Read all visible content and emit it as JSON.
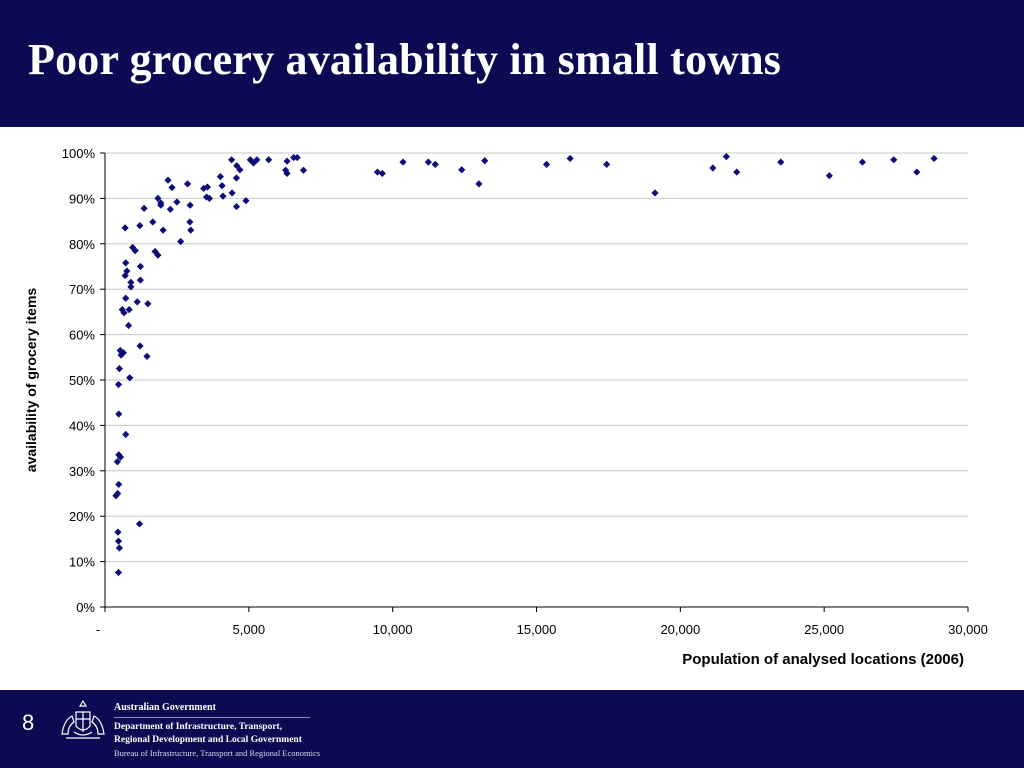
{
  "slide": {
    "title": "Poor grocery availability in small towns",
    "number": "8"
  },
  "footer": {
    "government": "Australian Government",
    "department_line1": "Department of Infrastructure, Transport,",
    "department_line2": "Regional Development and Local Government",
    "bureau": "Bureau of Infrastructure, Transport and Regional Economics"
  },
  "colors": {
    "header_bg": "#0c0a52",
    "marker": "#0d0d7a",
    "gridline": "#c8c8c8"
  },
  "chart_data": {
    "type": "scatter",
    "title": "",
    "xlabel": "Population of analysed locations (2006)",
    "ylabel": "availability of grocery items",
    "xlim": [
      0,
      30000
    ],
    "ylim": [
      0,
      1
    ],
    "x_ticks": [
      "-",
      "5,000",
      "10,000",
      "15,000",
      "20,000",
      "25,000",
      "30,000"
    ],
    "y_ticks": [
      "0%",
      "10%",
      "20%",
      "30%",
      "40%",
      "50%",
      "60%",
      "70%",
      "80%",
      "90%",
      "100%"
    ],
    "grid": "horizontal",
    "legend": "none",
    "marker": "diamond",
    "points": [
      [
        470,
        0.076
      ],
      [
        500,
        0.13
      ],
      [
        470,
        0.145
      ],
      [
        450,
        0.165
      ],
      [
        1200,
        0.183
      ],
      [
        380,
        0.245
      ],
      [
        440,
        0.25
      ],
      [
        480,
        0.27
      ],
      [
        430,
        0.32
      ],
      [
        480,
        0.335
      ],
      [
        540,
        0.33
      ],
      [
        720,
        0.38
      ],
      [
        480,
        0.425
      ],
      [
        470,
        0.49
      ],
      [
        860,
        0.505
      ],
      [
        500,
        0.525
      ],
      [
        530,
        0.565
      ],
      [
        560,
        0.555
      ],
      [
        640,
        0.56
      ],
      [
        1220,
        0.575
      ],
      [
        1460,
        0.552
      ],
      [
        820,
        0.62
      ],
      [
        600,
        0.655
      ],
      [
        660,
        0.648
      ],
      [
        840,
        0.655
      ],
      [
        1120,
        0.672
      ],
      [
        1490,
        0.668
      ],
      [
        720,
        0.68
      ],
      [
        900,
        0.705
      ],
      [
        900,
        0.715
      ],
      [
        1230,
        0.72
      ],
      [
        700,
        0.73
      ],
      [
        760,
        0.74
      ],
      [
        720,
        0.758
      ],
      [
        1230,
        0.75
      ],
      [
        960,
        0.792
      ],
      [
        1050,
        0.785
      ],
      [
        1210,
        0.84
      ],
      [
        700,
        0.835
      ],
      [
        1740,
        0.783
      ],
      [
        1840,
        0.775
      ],
      [
        2020,
        0.83
      ],
      [
        2630,
        0.805
      ],
      [
        1660,
        0.848
      ],
      [
        2950,
        0.848
      ],
      [
        2980,
        0.83
      ],
      [
        1360,
        0.878
      ],
      [
        2190,
        0.94
      ],
      [
        2330,
        0.924
      ],
      [
        1940,
        0.89
      ],
      [
        2270,
        0.876
      ],
      [
        2500,
        0.892
      ],
      [
        1940,
        0.885
      ],
      [
        1840,
        0.9
      ],
      [
        2960,
        0.885
      ],
      [
        2870,
        0.932
      ],
      [
        3430,
        0.922
      ],
      [
        3560,
        0.925
      ],
      [
        3630,
        0.9
      ],
      [
        3530,
        0.903
      ],
      [
        4010,
        0.948
      ],
      [
        4100,
        0.905
      ],
      [
        4070,
        0.928
      ],
      [
        4420,
        0.912
      ],
      [
        4570,
        0.882
      ],
      [
        4570,
        0.945
      ],
      [
        4690,
        0.963
      ],
      [
        4580,
        0.972
      ],
      [
        4400,
        0.985
      ],
      [
        4900,
        0.895
      ],
      [
        5050,
        0.985
      ],
      [
        5160,
        0.978
      ],
      [
        5280,
        0.985
      ],
      [
        5690,
        0.985
      ],
      [
        6280,
        0.962
      ],
      [
        6330,
        0.955
      ],
      [
        6330,
        0.982
      ],
      [
        6560,
        0.99
      ],
      [
        6680,
        0.99
      ],
      [
        6900,
        0.962
      ],
      [
        9470,
        0.958
      ],
      [
        9640,
        0.955
      ],
      [
        10360,
        0.98
      ],
      [
        11240,
        0.98
      ],
      [
        11480,
        0.975
      ],
      [
        12400,
        0.963
      ],
      [
        13000,
        0.932
      ],
      [
        13200,
        0.983
      ],
      [
        15350,
        0.975
      ],
      [
        16170,
        0.988
      ],
      [
        17440,
        0.975
      ],
      [
        19120,
        0.912
      ],
      [
        21130,
        0.967
      ],
      [
        21600,
        0.992
      ],
      [
        21960,
        0.958
      ],
      [
        23490,
        0.98
      ],
      [
        25180,
        0.95
      ],
      [
        26330,
        0.98
      ],
      [
        27420,
        0.985
      ],
      [
        28220,
        0.958
      ],
      [
        28820,
        0.988
      ]
    ]
  }
}
